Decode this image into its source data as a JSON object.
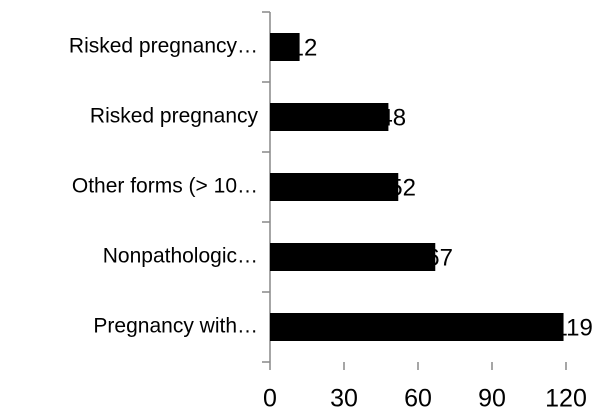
{
  "chart_data": {
    "type": "bar",
    "orientation": "horizontal",
    "categories": [
      "Risked pregnancy…",
      "Risked pregnancy",
      "Other forms (> 10…",
      "Nonpathologic…",
      "Pregnancy with…"
    ],
    "values": [
      12,
      48,
      52,
      67,
      119
    ],
    "color": "#000000",
    "xlim": [
      0,
      120
    ],
    "xticks": [
      0,
      30,
      60,
      90,
      120
    ],
    "grid": false
  }
}
